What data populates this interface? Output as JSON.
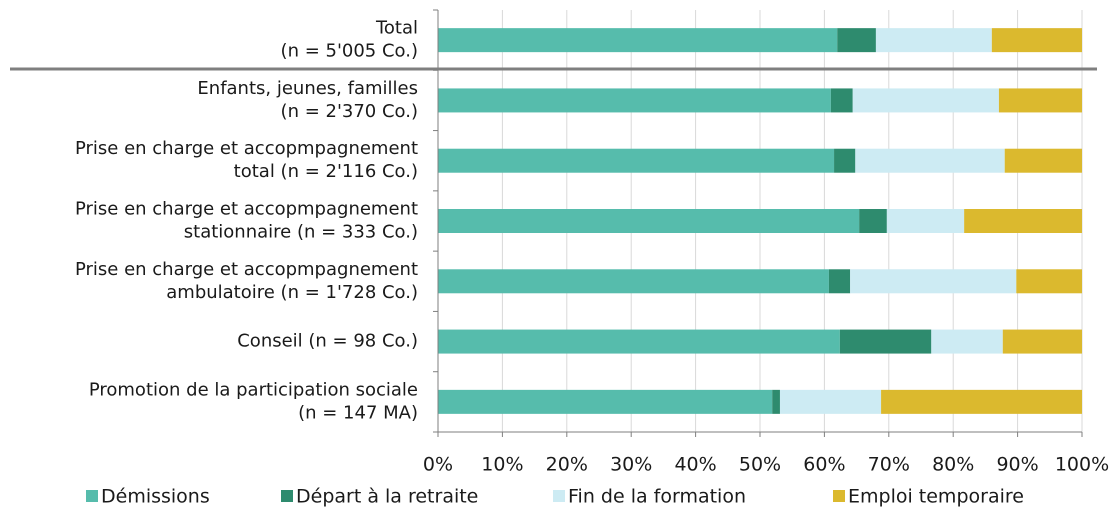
{
  "chart_data": {
    "type": "stacked-barh",
    "categories": [
      [
        "Total",
        "(n = 5'005 Co.)"
      ],
      [
        "Enfants, jeunes, familles",
        "(n = 2'370 Co.)"
      ],
      [
        "Prise en charge et accopmpagnement",
        "total (n = 2'116 Co.)"
      ],
      [
        "Prise en charge et accopmpagnement",
        "stationnaire (n = 333 Co.)"
      ],
      [
        "Prise en charge et accopmpagnement",
        "ambulatoire (n = 1'728 Co.)"
      ],
      [
        "Conseil (n = 98 Co.)"
      ],
      [
        "Promotion de la participation sociale",
        "(n = 147 MA)"
      ]
    ],
    "series": [
      {
        "name": "Démissions",
        "color": "#56bcac",
        "values": [
          62.0,
          61.0,
          61.5,
          65.4,
          60.7,
          62.4,
          51.9
        ]
      },
      {
        "name": "Départ à la retraite",
        "color": "#2e8b6e",
        "values": [
          6.0,
          3.4,
          3.3,
          4.3,
          3.3,
          14.2,
          1.2
        ]
      },
      {
        "name": "Fin de la formation",
        "color": "#cdebf3",
        "values": [
          18.0,
          22.7,
          23.2,
          12.0,
          25.8,
          11.1,
          15.7
        ]
      },
      {
        "name": "Emploi temporaire",
        "color": "#dbb92e",
        "values": [
          14.0,
          12.9,
          12.0,
          18.3,
          10.2,
          12.3,
          31.2
        ]
      }
    ],
    "xlim": [
      0,
      100
    ],
    "xticks": [
      {
        "value": 0,
        "label": "0%"
      },
      {
        "value": 10,
        "label": "10%"
      },
      {
        "value": 20,
        "label": "20%"
      },
      {
        "value": 30,
        "label": "30%"
      },
      {
        "value": 40,
        "label": "40%"
      },
      {
        "value": 50,
        "label": "50%"
      },
      {
        "value": 60,
        "label": "60%"
      },
      {
        "value": 70,
        "label": "70%"
      },
      {
        "value": 80,
        "label": "80%"
      },
      {
        "value": 90,
        "label": "90%"
      },
      {
        "value": 100,
        "label": "100%"
      }
    ],
    "grid": true,
    "legend": "bottom"
  }
}
